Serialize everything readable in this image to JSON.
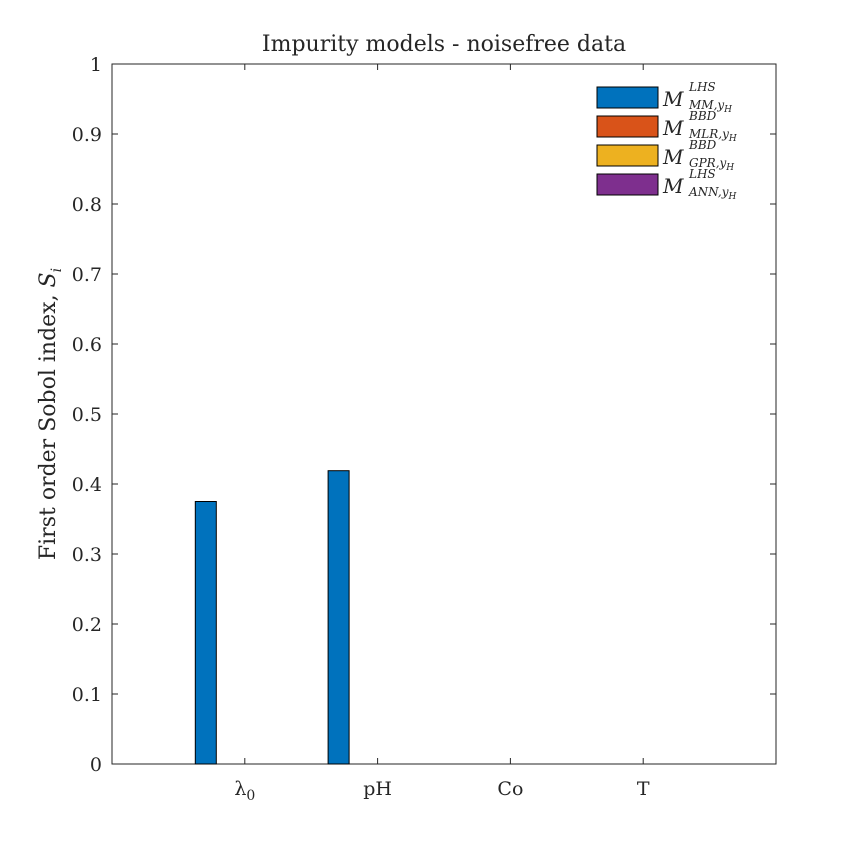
{
  "chart_data": {
    "type": "bar",
    "title": "Impurity models - noisefree data",
    "xlabel": "",
    "ylabel": "First order Sobol index, ",
    "ylabel_symbol": "S",
    "ylabel_symbol_sub": "i",
    "categories": [
      {
        "base": "λ",
        "sub": "0"
      },
      {
        "base": "pH",
        "sub": ""
      },
      {
        "base": "Co",
        "sub": ""
      },
      {
        "base": "T",
        "sub": ""
      }
    ],
    "ylim": [
      0,
      1
    ],
    "yticks": [
      "0",
      "0.1",
      "0.2",
      "0.3",
      "0.4",
      "0.5",
      "0.6",
      "0.7",
      "0.8",
      "0.9",
      "1"
    ],
    "grid": false,
    "legend_position": "top-right",
    "series": [
      {
        "name": "M_LHS_MM,yH",
        "symbol": "M",
        "sup": "LHS",
        "sub": "MM,y",
        "sub2": "H",
        "color": "#0072BD",
        "values": [
          0.375,
          0.419,
          0.0,
          0.0
        ]
      },
      {
        "name": "M_BBD_MLR,yH",
        "symbol": "M",
        "sup": "BBD",
        "sub": "MLR,y",
        "sub2": "H",
        "color": "#D95319",
        "values": [
          0.0,
          0.0,
          0.0,
          0.0
        ]
      },
      {
        "name": "M_BBD_GPR,yH",
        "symbol": "M",
        "sup": "BBD",
        "sub": "GPR,y",
        "sub2": "H",
        "color": "#EDB120",
        "values": [
          0.0,
          0.0,
          0.0,
          0.0
        ]
      },
      {
        "name": "M_LHS_ANN,yH",
        "symbol": "M",
        "sup": "LHS",
        "sub": "ANN,y",
        "sub2": "H",
        "color": "#7E2F8E",
        "values": [
          0.0,
          0.0,
          0.0,
          0.0
        ]
      }
    ]
  }
}
